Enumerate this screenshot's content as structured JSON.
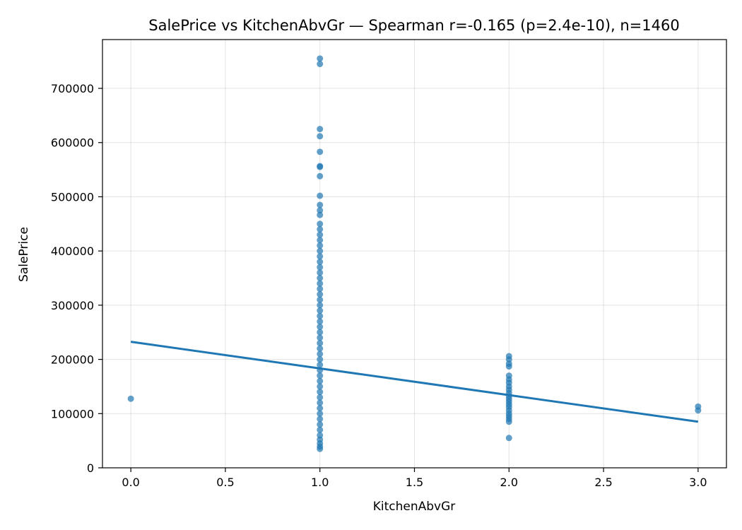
{
  "chart_data": {
    "type": "scatter",
    "title": "SalePrice vs KitchenAbvGr — Spearman r=-0.165 (p=2.4e-10), n=1460",
    "xlabel": "KitchenAbvGr",
    "ylabel": "SalePrice",
    "xlim": [
      -0.15,
      3.15
    ],
    "ylim": [
      0,
      790000
    ],
    "xticks": [
      "0.0",
      "0.5",
      "1.0",
      "1.5",
      "2.0",
      "2.5",
      "3.0"
    ],
    "yticks": [
      "0",
      "100000",
      "200000",
      "300000",
      "400000",
      "500000",
      "600000",
      "700000"
    ],
    "grid": true,
    "colors": {
      "points": "#1f77b4",
      "fit_line": "#1f77b4"
    },
    "trend_line": {
      "x": [
        0,
        3
      ],
      "y": [
        232500,
        85000
      ]
    },
    "points": [
      {
        "x": 0,
        "y": 127500
      },
      {
        "x": 1,
        "y": 755000
      },
      {
        "x": 1,
        "y": 745000
      },
      {
        "x": 1,
        "y": 625000
      },
      {
        "x": 1,
        "y": 611657
      },
      {
        "x": 1,
        "y": 582933
      },
      {
        "x": 1,
        "y": 556581
      },
      {
        "x": 1,
        "y": 555000
      },
      {
        "x": 1,
        "y": 538000
      },
      {
        "x": 1,
        "y": 501837
      },
      {
        "x": 1,
        "y": 485000
      },
      {
        "x": 1,
        "y": 475000
      },
      {
        "x": 1,
        "y": 466500
      },
      {
        "x": 1,
        "y": 450000
      },
      {
        "x": 1,
        "y": 440000
      },
      {
        "x": 1,
        "y": 430000
      },
      {
        "x": 1,
        "y": 420000
      },
      {
        "x": 1,
        "y": 410000
      },
      {
        "x": 1,
        "y": 400000
      },
      {
        "x": 1,
        "y": 390000
      },
      {
        "x": 1,
        "y": 380000
      },
      {
        "x": 1,
        "y": 370000
      },
      {
        "x": 1,
        "y": 360000
      },
      {
        "x": 1,
        "y": 350000
      },
      {
        "x": 1,
        "y": 340000
      },
      {
        "x": 1,
        "y": 330000
      },
      {
        "x": 1,
        "y": 320000
      },
      {
        "x": 1,
        "y": 310000
      },
      {
        "x": 1,
        "y": 300000
      },
      {
        "x": 1,
        "y": 290000
      },
      {
        "x": 1,
        "y": 280000
      },
      {
        "x": 1,
        "y": 270000
      },
      {
        "x": 1,
        "y": 260000
      },
      {
        "x": 1,
        "y": 250000
      },
      {
        "x": 1,
        "y": 240000
      },
      {
        "x": 1,
        "y": 230000
      },
      {
        "x": 1,
        "y": 220000
      },
      {
        "x": 1,
        "y": 210000
      },
      {
        "x": 1,
        "y": 200000
      },
      {
        "x": 1,
        "y": 190000
      },
      {
        "x": 1,
        "y": 180000
      },
      {
        "x": 1,
        "y": 170000
      },
      {
        "x": 1,
        "y": 160000
      },
      {
        "x": 1,
        "y": 150000
      },
      {
        "x": 1,
        "y": 140000
      },
      {
        "x": 1,
        "y": 130000
      },
      {
        "x": 1,
        "y": 120000
      },
      {
        "x": 1,
        "y": 110000
      },
      {
        "x": 1,
        "y": 100000
      },
      {
        "x": 1,
        "y": 90000
      },
      {
        "x": 1,
        "y": 80000
      },
      {
        "x": 1,
        "y": 70000
      },
      {
        "x": 1,
        "y": 60000
      },
      {
        "x": 1,
        "y": 52000
      },
      {
        "x": 1,
        "y": 45000
      },
      {
        "x": 1,
        "y": 39300
      },
      {
        "x": 1,
        "y": 34900
      },
      {
        "x": 2,
        "y": 206000
      },
      {
        "x": 2,
        "y": 200000
      },
      {
        "x": 2,
        "y": 192000
      },
      {
        "x": 2,
        "y": 187000
      },
      {
        "x": 2,
        "y": 170000
      },
      {
        "x": 2,
        "y": 163000
      },
      {
        "x": 2,
        "y": 157000
      },
      {
        "x": 2,
        "y": 150000
      },
      {
        "x": 2,
        "y": 144000
      },
      {
        "x": 2,
        "y": 138000
      },
      {
        "x": 2,
        "y": 132000
      },
      {
        "x": 2,
        "y": 127000
      },
      {
        "x": 2,
        "y": 122000
      },
      {
        "x": 2,
        "y": 117000
      },
      {
        "x": 2,
        "y": 112000
      },
      {
        "x": 2,
        "y": 106000
      },
      {
        "x": 2,
        "y": 100000
      },
      {
        "x": 2,
        "y": 95000
      },
      {
        "x": 2,
        "y": 90000
      },
      {
        "x": 2,
        "y": 85000
      },
      {
        "x": 2,
        "y": 55000
      },
      {
        "x": 3,
        "y": 113000
      },
      {
        "x": 3,
        "y": 106000
      }
    ]
  }
}
